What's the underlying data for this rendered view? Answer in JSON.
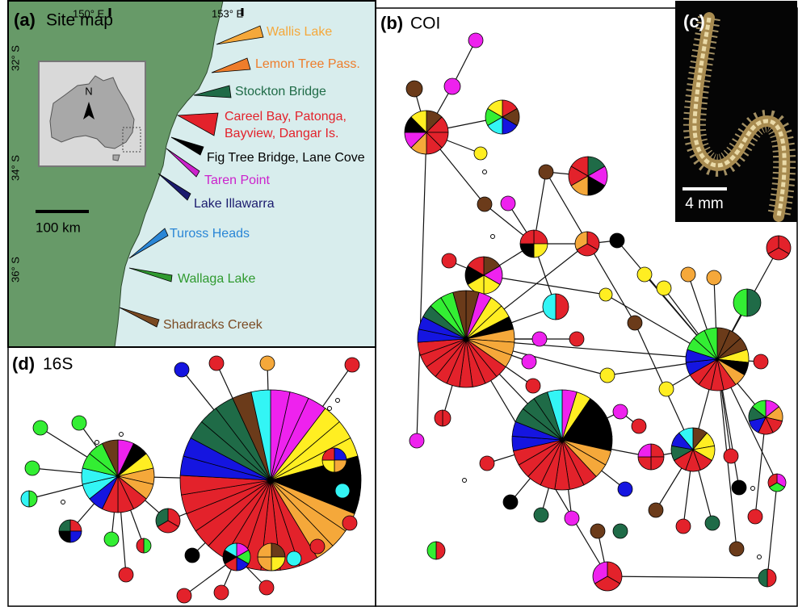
{
  "panels": {
    "a": {
      "label": "(a)",
      "title": "Site map",
      "lon_labels": [
        "150° E",
        "153° E"
      ],
      "lat_labels": [
        "32° S",
        "34° S",
        "36° S"
      ],
      "scale_bar": "100 km",
      "north": "N",
      "sites": [
        {
          "lines": [
            "Wallis Lake"
          ],
          "color": "#f5a83a"
        },
        {
          "lines": [
            "Lemon Tree Pass."
          ],
          "color": "#ee7d2b"
        },
        {
          "lines": [
            "Stockton Bridge"
          ],
          "color": "#1f6b47"
        },
        {
          "lines": [
            "Careel Bay, Patonga,",
            "Bayview, Dangar Is."
          ],
          "color": "#e3222b"
        },
        {
          "lines": [
            "Fig Tree Bridge, Lane Cove"
          ],
          "color": "#000000"
        },
        {
          "lines": [
            "Taren Point"
          ],
          "color": "#cc22cc"
        },
        {
          "lines": [
            "Lake Illawarra"
          ],
          "color": "#1b1b6e"
        },
        {
          "lines": [
            "Tuross Heads"
          ],
          "color": "#2a86d6"
        },
        {
          "lines": [
            "Wallaga Lake"
          ],
          "color": "#2f9a2f"
        },
        {
          "lines": [
            "Shadracks Creek"
          ],
          "color": "#7a4a22"
        }
      ]
    },
    "b": {
      "label": "(b)",
      "title": "COI"
    },
    "c": {
      "label": "(c)",
      "scale_bar": "4 mm"
    },
    "d": {
      "label": "(d)",
      "title": "16S"
    }
  }
}
